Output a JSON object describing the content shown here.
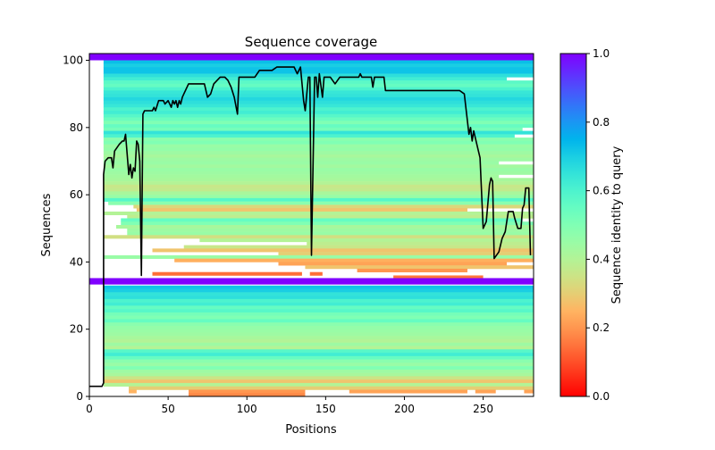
{
  "chart_data": {
    "type": "heatmap",
    "title": "Sequence coverage",
    "xlabel": "Positions",
    "ylabel": "Sequences",
    "xlim": [
      0,
      282
    ],
    "ylim": [
      0,
      102
    ],
    "xticks": [
      0,
      50,
      100,
      150,
      200,
      250
    ],
    "yticks": [
      0,
      20,
      40,
      60,
      80,
      100
    ],
    "colormap": "rainbow_r",
    "colorbar": {
      "label": "Sequence identity to query",
      "range": [
        0,
        1
      ],
      "ticks": [
        "0.0",
        "0.2",
        "0.4",
        "0.6",
        "0.8",
        "1.0"
      ]
    },
    "query_rows": [
      {
        "y_from": 100,
        "y_to": 102,
        "start": 0,
        "end": 282,
        "identity": 1.0
      },
      {
        "y_from": 33.3,
        "y_to": 35.2,
        "start": 0,
        "end": 282,
        "identity": 1.0
      }
    ],
    "alignment_rows_columns": [
      "row",
      "start",
      "end",
      "identity"
    ],
    "alignment_rows": [
      [
        99,
        9,
        282,
        0.73
      ],
      [
        98,
        9,
        282,
        0.7
      ],
      [
        97,
        9,
        282,
        0.72
      ],
      [
        96,
        9,
        282,
        0.72
      ],
      [
        95,
        9,
        282,
        0.66
      ],
      [
        94,
        9,
        265,
        0.62
      ],
      [
        93,
        9,
        282,
        0.57
      ],
      [
        92,
        9,
        282,
        0.55
      ],
      [
        91,
        9,
        282,
        0.6
      ],
      [
        90,
        9,
        282,
        0.64
      ],
      [
        89,
        9,
        282,
        0.65
      ],
      [
        88,
        9,
        282,
        0.68
      ],
      [
        87,
        9,
        282,
        0.66
      ],
      [
        86,
        9,
        282,
        0.64
      ],
      [
        85,
        9,
        282,
        0.6
      ],
      [
        84,
        9,
        282,
        0.62
      ],
      [
        83,
        9,
        282,
        0.58
      ],
      [
        82,
        9,
        282,
        0.54
      ],
      [
        81,
        9,
        282,
        0.5
      ],
      [
        80,
        9,
        282,
        0.55
      ],
      [
        79,
        9,
        275,
        0.52
      ],
      [
        78,
        9,
        282,
        0.65
      ],
      [
        77,
        9,
        270,
        0.6
      ],
      [
        76,
        9,
        282,
        0.48
      ],
      [
        75,
        9,
        282,
        0.5
      ],
      [
        74,
        9,
        282,
        0.45
      ],
      [
        73,
        9,
        282,
        0.46
      ],
      [
        72,
        9,
        282,
        0.44
      ],
      [
        71,
        9,
        282,
        0.42
      ],
      [
        70,
        9,
        282,
        0.44
      ],
      [
        69,
        9,
        260,
        0.45
      ],
      [
        68,
        9,
        282,
        0.43
      ],
      [
        67,
        9,
        282,
        0.45
      ],
      [
        66,
        9,
        282,
        0.44
      ],
      [
        65,
        9,
        260,
        0.43
      ],
      [
        64,
        9,
        282,
        0.42
      ],
      [
        63,
        9,
        282,
        0.4
      ],
      [
        62,
        9,
        282,
        0.36
      ],
      [
        61,
        9,
        282,
        0.37
      ],
      [
        60,
        9,
        282,
        0.42
      ],
      [
        59,
        9,
        282,
        0.45
      ],
      [
        58,
        9,
        282,
        0.58
      ],
      [
        57,
        12,
        282,
        0.48
      ],
      [
        56,
        28,
        282,
        0.32
      ],
      [
        55,
        30,
        240,
        0.28
      ],
      [
        54,
        9,
        282,
        0.4
      ],
      [
        53,
        24,
        282,
        0.38
      ],
      [
        52,
        20,
        275,
        0.55
      ],
      [
        51,
        20,
        282,
        0.5
      ],
      [
        50,
        17,
        282,
        0.42
      ],
      [
        49,
        24,
        282,
        0.44
      ],
      [
        48,
        24,
        282,
        0.45
      ],
      [
        47,
        9,
        282,
        0.34
      ],
      [
        46,
        70,
        282,
        0.4
      ],
      [
        45,
        138,
        282,
        0.38
      ],
      [
        44,
        60,
        282,
        0.36
      ],
      [
        43,
        40,
        282,
        0.28
      ],
      [
        42,
        120,
        282,
        0.3
      ],
      [
        41,
        9,
        282,
        0.45
      ],
      [
        40,
        54,
        282,
        0.24
      ],
      [
        39,
        120,
        265,
        0.22
      ],
      [
        38,
        137,
        282,
        0.28
      ],
      [
        37,
        170,
        240,
        0.2
      ],
      [
        36,
        40,
        135,
        0.14
      ],
      [
        36,
        140,
        148,
        0.14
      ],
      [
        35,
        193,
        250,
        0.15
      ],
      [
        32,
        9,
        282,
        0.72
      ],
      [
        31,
        9,
        282,
        0.7
      ],
      [
        30,
        9,
        282,
        0.65
      ],
      [
        29,
        9,
        282,
        0.66
      ],
      [
        28,
        9,
        282,
        0.6
      ],
      [
        27,
        9,
        282,
        0.62
      ],
      [
        26,
        9,
        282,
        0.55
      ],
      [
        25,
        9,
        282,
        0.58
      ],
      [
        24,
        9,
        282,
        0.52
      ],
      [
        23,
        9,
        282,
        0.5
      ],
      [
        22,
        9,
        282,
        0.55
      ],
      [
        21,
        9,
        282,
        0.48
      ],
      [
        20,
        9,
        282,
        0.46
      ],
      [
        19,
        9,
        282,
        0.45
      ],
      [
        18,
        9,
        282,
        0.44
      ],
      [
        17,
        9,
        282,
        0.42
      ],
      [
        16,
        9,
        282,
        0.4
      ],
      [
        15,
        9,
        282,
        0.44
      ],
      [
        14,
        9,
        282,
        0.4
      ],
      [
        13,
        9,
        282,
        0.58
      ],
      [
        12,
        9,
        282,
        0.62
      ],
      [
        11,
        9,
        282,
        0.55
      ],
      [
        10,
        9,
        282,
        0.48
      ],
      [
        9,
        9,
        282,
        0.45
      ],
      [
        8,
        9,
        282,
        0.5
      ],
      [
        7,
        9,
        282,
        0.44
      ],
      [
        6,
        9,
        282,
        0.42
      ],
      [
        5,
        9,
        282,
        0.35
      ],
      [
        4,
        9,
        282,
        0.28
      ],
      [
        3,
        9,
        282,
        0.4
      ],
      [
        2,
        25,
        282,
        0.3
      ],
      [
        1,
        25,
        30,
        0.25
      ],
      [
        1,
        63,
        137,
        0.2
      ],
      [
        1,
        165,
        240,
        0.22
      ],
      [
        1,
        245,
        258,
        0.22
      ],
      [
        1,
        276,
        282,
        0.22
      ],
      [
        0,
        63,
        137,
        0.18
      ]
    ],
    "coverage_line": {
      "color": "#000000",
      "x": [
        0,
        8,
        9,
        9,
        10,
        12,
        14,
        15,
        16,
        19,
        21,
        22,
        23,
        24,
        25,
        26,
        27,
        28,
        29,
        30,
        31,
        32,
        33,
        34,
        35,
        40,
        41,
        42,
        44,
        47,
        48,
        50,
        52,
        53,
        54,
        55,
        56,
        57,
        58,
        59,
        60,
        63,
        73,
        75,
        77,
        79,
        83,
        86,
        88,
        90,
        92,
        94,
        95,
        105,
        108,
        116,
        119,
        130,
        132,
        134,
        136,
        137,
        139,
        140,
        141,
        143,
        144,
        145,
        146,
        148,
        149,
        153,
        156,
        159,
        171,
        172,
        173,
        179,
        180,
        181,
        187,
        188,
        235,
        238,
        241,
        242,
        243,
        244,
        247,
        248,
        250,
        252,
        254,
        255,
        256,
        257,
        260,
        262,
        264,
        265,
        266,
        269,
        270,
        272,
        274,
        275,
        276,
        277,
        279,
        280
      ],
      "y": [
        3,
        3,
        4,
        66,
        70,
        71,
        71,
        68,
        73,
        75,
        76,
        76,
        78,
        72,
        66,
        69,
        65,
        68,
        67,
        76,
        75,
        70,
        36,
        84,
        85,
        85,
        86,
        85,
        88,
        88,
        87,
        88,
        86,
        88,
        87,
        88,
        86,
        88,
        87,
        89,
        90,
        93,
        93,
        89,
        90,
        93,
        95,
        95,
        94,
        92,
        89,
        84,
        95,
        95,
        97,
        97,
        98,
        98,
        96,
        98,
        88,
        85,
        95,
        95,
        42,
        95,
        95,
        89,
        96,
        89,
        95,
        95,
        93,
        95,
        95,
        96,
        95,
        95,
        92,
        95,
        95,
        91,
        91,
        90,
        78,
        80,
        76,
        79,
        73,
        71,
        50,
        52,
        63,
        65,
        64,
        41,
        43,
        47,
        49,
        52,
        55,
        55,
        53,
        50,
        50,
        56,
        57,
        62,
        62,
        42
      ]
    }
  }
}
